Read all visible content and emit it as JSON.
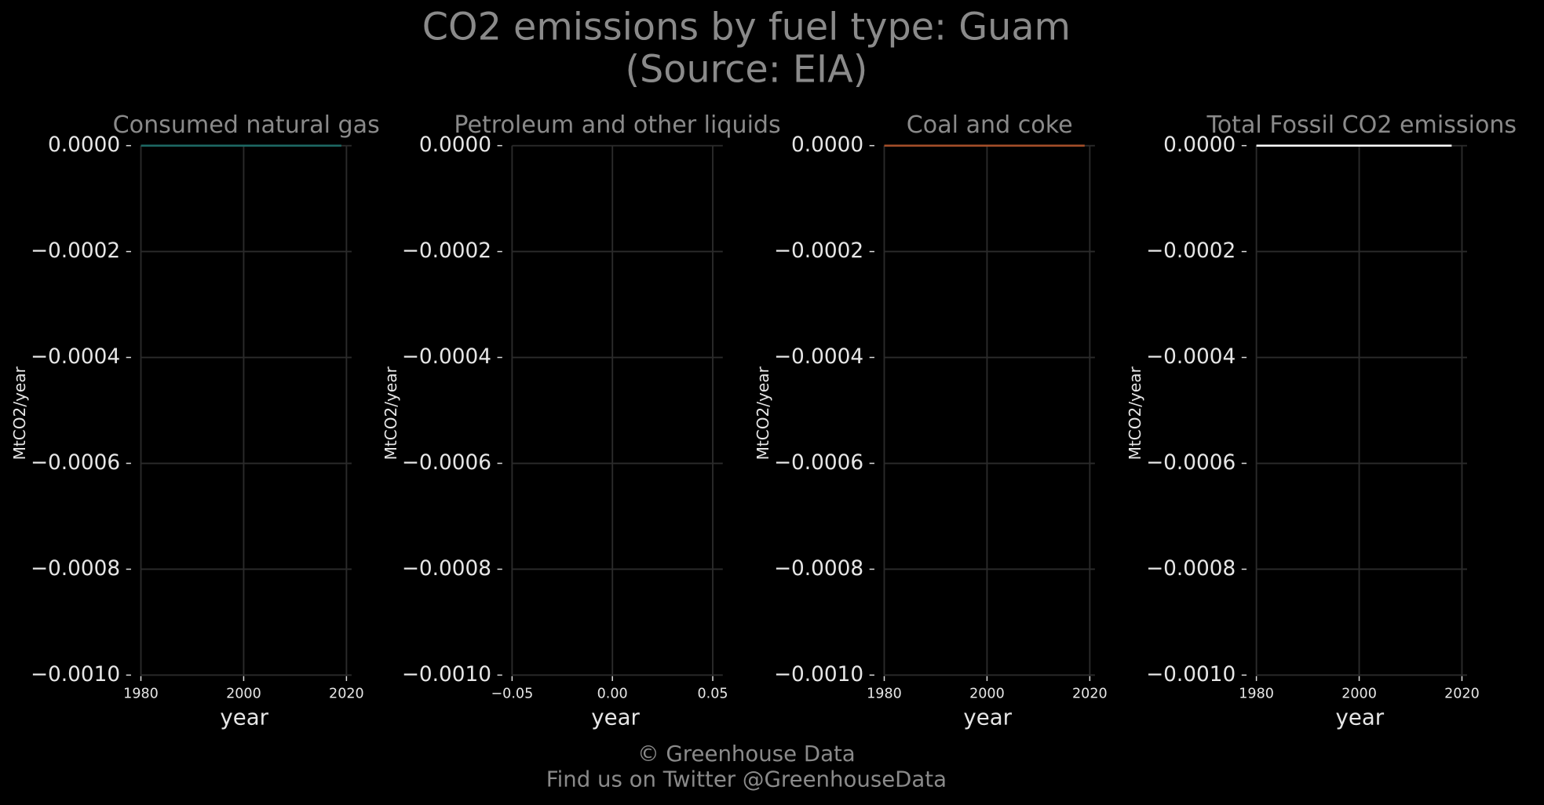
{
  "title": "CO2 emissions by fuel type: Guam",
  "subtitle": "(Source: EIA)",
  "footer": [
    "© Greenhouse Data",
    "Find us on Twitter @GreenhouseData"
  ],
  "chart_data": [
    {
      "type": "line",
      "title": "Consumed natural gas",
      "xlabel": "year",
      "ylabel": "MtCO2/year",
      "xlim": [
        1980,
        2021
      ],
      "xticks": [
        1980,
        2000,
        2020
      ],
      "ylim": [
        -0.001,
        0
      ],
      "yticks": [
        {
          "value": 0,
          "label": "0.0000"
        },
        {
          "value": -0.0002,
          "label": "−0.0002"
        },
        {
          "value": -0.0004,
          "label": "−0.0004"
        },
        {
          "value": -0.0006,
          "label": "−0.0006"
        },
        {
          "value": -0.0008,
          "label": "−0.0008"
        },
        {
          "value": -0.001,
          "label": "−0.0010"
        }
      ],
      "grid": true,
      "series": [
        {
          "color": "#1e6b66",
          "x": [
            1980,
            2019
          ],
          "values": [
            0,
            0
          ]
        }
      ]
    },
    {
      "type": "line",
      "title": "Petroleum and other liquids",
      "xlabel": "year",
      "ylabel": "MtCO2/year",
      "xlim": [
        -0.05,
        0.055
      ],
      "xticks": [
        {
          "value": -0.05,
          "label": "−0.05"
        },
        {
          "value": 0,
          "label": "0.00"
        },
        {
          "value": 0.05,
          "label": "0.05"
        }
      ],
      "ylim": [
        -0.001,
        0
      ],
      "yticks": [
        {
          "value": 0,
          "label": "0.0000"
        },
        {
          "value": -0.0002,
          "label": "−0.0002"
        },
        {
          "value": -0.0004,
          "label": "−0.0004"
        },
        {
          "value": -0.0006,
          "label": "−0.0006"
        },
        {
          "value": -0.0008,
          "label": "−0.0008"
        },
        {
          "value": -0.001,
          "label": "−0.0010"
        }
      ],
      "grid": true,
      "series": []
    },
    {
      "type": "line",
      "title": "Coal and coke",
      "xlabel": "year",
      "ylabel": "MtCO2/year",
      "xlim": [
        1980,
        2021
      ],
      "xticks": [
        1980,
        2000,
        2020
      ],
      "ylim": [
        -0.001,
        0
      ],
      "yticks": [
        {
          "value": 0,
          "label": "0.0000"
        },
        {
          "value": -0.0002,
          "label": "−0.0002"
        },
        {
          "value": -0.0004,
          "label": "−0.0004"
        },
        {
          "value": -0.0006,
          "label": "−0.0006"
        },
        {
          "value": -0.0008,
          "label": "−0.0008"
        },
        {
          "value": -0.001,
          "label": "−0.0010"
        }
      ],
      "grid": true,
      "series": [
        {
          "color": "#a9502a",
          "x": [
            1980,
            2019
          ],
          "values": [
            0,
            0
          ]
        }
      ]
    },
    {
      "type": "line",
      "title": "Total Fossil CO2 emissions",
      "xlabel": "year",
      "ylabel": "MtCO2/year",
      "xlim": [
        1980,
        2021
      ],
      "xticks": [
        1980,
        2000,
        2020
      ],
      "ylim": [
        -0.001,
        0
      ],
      "yticks": [
        {
          "value": 0,
          "label": "0.0000"
        },
        {
          "value": -0.0002,
          "label": "−0.0002"
        },
        {
          "value": -0.0004,
          "label": "−0.0004"
        },
        {
          "value": -0.0006,
          "label": "−0.0006"
        },
        {
          "value": -0.0008,
          "label": "−0.0008"
        },
        {
          "value": -0.001,
          "label": "−0.0010"
        }
      ],
      "grid": true,
      "series": [
        {
          "color": "#ffffff",
          "x": [
            1980,
            2018
          ],
          "values": [
            0,
            0
          ]
        }
      ]
    }
  ]
}
